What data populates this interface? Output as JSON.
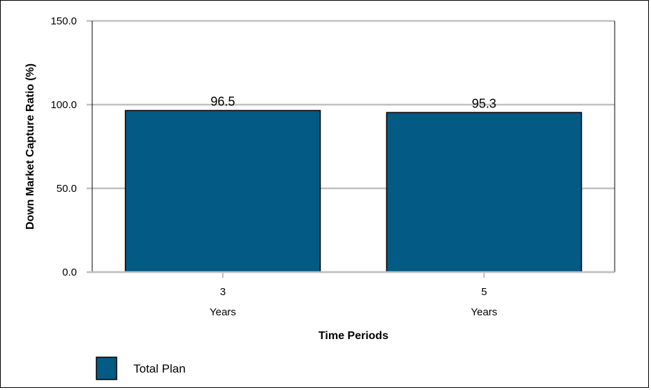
{
  "chart_data": {
    "type": "bar",
    "categories": [
      {
        "top": "3",
        "bottom": "Years"
      },
      {
        "top": "5",
        "bottom": "Years"
      }
    ],
    "series": [
      {
        "name": "Total Plan",
        "values": [
          96.5,
          95.3
        ],
        "labels": [
          "96.5",
          "95.3"
        ],
        "color": "#035a84"
      }
    ],
    "ylim": [
      0,
      150
    ],
    "yticks": [
      "0.0",
      "50.0",
      "100.0",
      "150.0"
    ],
    "ytick_values": [
      0,
      50,
      100,
      150
    ],
    "xlabel": "Time Periods",
    "ylabel": "Down Market Capture Ratio (%)",
    "grid": true,
    "legend": "bottom-left"
  },
  "colors": {
    "bar": "#035a84",
    "grid": "#c0c0c0",
    "axis": "#000000"
  }
}
